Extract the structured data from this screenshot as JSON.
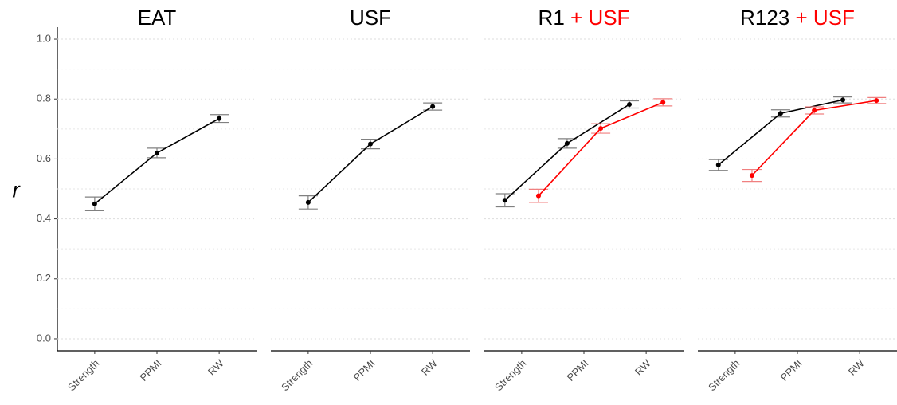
{
  "chart_data": {
    "type": "line",
    "ylabel": "r",
    "ylim": [
      -0.04,
      1.04
    ],
    "yticks": [
      {
        "value": 0,
        "label": "0.0"
      },
      0.2,
      0.4,
      0.6,
      0.8,
      {
        "value": 1,
        "label": "1.0"
      }
    ],
    "y_minor_ticks": [
      0.1,
      0.3,
      0.5,
      0.7,
      0.9
    ],
    "grid": true,
    "categories": [
      "Strength",
      "PPMI",
      "RW"
    ],
    "facets": [
      {
        "title": "EAT",
        "series": [
          {
            "color": "#000000",
            "error_color": "#808080",
            "values": [
              0.45,
              0.62,
              0.735
            ],
            "errors": [
              0.023,
              0.016,
              0.013
            ]
          }
        ]
      },
      {
        "title": "USF",
        "series": [
          {
            "color": "#000000",
            "error_color": "#808080",
            "values": [
              0.455,
              0.65,
              0.775
            ],
            "errors": [
              0.022,
              0.016,
              0.012
            ]
          }
        ]
      },
      {
        "title": "R1",
        "title_suffix": "+ USF",
        "title_suffix_color": "#ff0000",
        "series": [
          {
            "color": "#000000",
            "error_color": "#808080",
            "values": [
              0.462,
              0.652,
              0.782
            ],
            "errors": [
              0.022,
              0.016,
              0.012
            ]
          },
          {
            "color": "#ff0000",
            "error_color": "#f08080",
            "values": [
              0.477,
              0.702,
              0.789
            ],
            "errors": [
              0.022,
              0.016,
              0.012
            ]
          }
        ]
      },
      {
        "title": "R123",
        "title_suffix": "+ USF",
        "title_suffix_color": "#ff0000",
        "series": [
          {
            "color": "#000000",
            "error_color": "#808080",
            "values": [
              0.58,
              0.752,
              0.797
            ],
            "errors": [
              0.018,
              0.012,
              0.01
            ]
          },
          {
            "color": "#ff0000",
            "error_color": "#f08080",
            "values": [
              0.545,
              0.762,
              0.795
            ],
            "errors": [
              0.02,
              0.012,
              0.01
            ]
          }
        ]
      }
    ]
  }
}
